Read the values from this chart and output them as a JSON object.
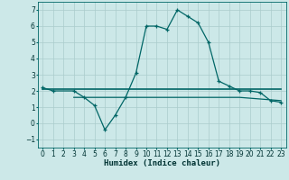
{
  "title": "",
  "xlabel": "Humidex (Indice chaleur)",
  "bg_color": "#cce8e8",
  "grid_color": "#aacccc",
  "line_color": "#006666",
  "xlim": [
    -0.5,
    23.5
  ],
  "ylim": [
    -1.5,
    7.5
  ],
  "xticks": [
    0,
    1,
    2,
    3,
    4,
    5,
    6,
    7,
    8,
    9,
    10,
    11,
    12,
    13,
    14,
    15,
    16,
    17,
    18,
    19,
    20,
    21,
    22,
    23
  ],
  "yticks": [
    -1,
    0,
    1,
    2,
    3,
    4,
    5,
    6,
    7
  ],
  "series1_x": [
    0,
    1,
    3,
    4,
    5,
    6,
    7,
    8,
    9,
    10,
    11,
    12,
    13,
    14,
    15,
    16,
    17,
    18,
    19,
    20,
    21,
    22,
    23
  ],
  "series1_y": [
    2.2,
    2.0,
    2.0,
    1.6,
    1.1,
    -0.4,
    0.5,
    1.6,
    3.1,
    6.0,
    6.0,
    5.8,
    7.0,
    6.6,
    6.2,
    5.0,
    2.6,
    2.3,
    2.0,
    2.0,
    1.9,
    1.4,
    1.3
  ],
  "series2_x": [
    0,
    10,
    14,
    19,
    22,
    23
  ],
  "series2_y": [
    2.1,
    2.1,
    2.1,
    2.1,
    2.1,
    2.1
  ],
  "series3_x": [
    3,
    9,
    14,
    19,
    23
  ],
  "series3_y": [
    1.6,
    1.6,
    1.6,
    1.6,
    1.4
  ],
  "xlabel_fontsize": 6.5,
  "tick_fontsize": 5.5
}
